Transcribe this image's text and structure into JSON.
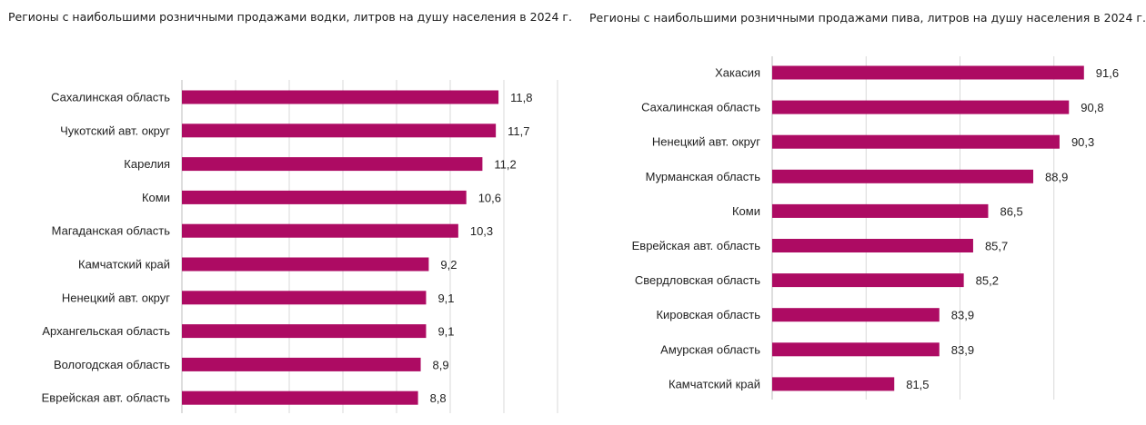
{
  "colors": {
    "bar": "#ad0b63",
    "grid": "#d9d9d9",
    "axis": "#bdbdbd",
    "text": "#222222"
  },
  "chart_data": [
    {
      "type": "bar",
      "orientation": "horizontal",
      "title": "Регионы с наибольшими розничными продажами водки, литров на душу населения в 2024 г.",
      "categories": [
        "Сахалинская область",
        "Чукотский авт. округ",
        "Карелия",
        "Коми",
        "Магаданская область",
        "Камчатский край",
        "Ненецкий авт. округ",
        "Архангельская область",
        "Вологодская область",
        "Еврейская авт. область"
      ],
      "values": [
        11.8,
        11.7,
        11.2,
        10.6,
        10.3,
        9.2,
        9.1,
        9.1,
        8.9,
        8.8
      ],
      "value_labels": [
        "11,8",
        "11,7",
        "11,2",
        "10,6",
        "10,3",
        "9,2",
        "9,1",
        "9,1",
        "8,9",
        "8,8"
      ],
      "xlim": [
        0,
        14
      ],
      "grid": true,
      "legend": "none"
    },
    {
      "type": "bar",
      "orientation": "horizontal",
      "title": "Регионы с наибольшими розничными продажами пива, литров на душу населения в 2024 г.",
      "categories": [
        "Хакасия",
        "Сахалинская область",
        "Ненецкий авт. округ",
        "Мурманская область",
        "Коми",
        "Еврейская авт. область",
        "Свердловская область",
        "Кировская область",
        "Амурская область",
        "Камчатский край"
      ],
      "values": [
        91.6,
        90.8,
        90.3,
        88.9,
        86.5,
        85.7,
        85.2,
        83.9,
        83.9,
        81.5
      ],
      "value_labels": [
        "91,6",
        "90,8",
        "90,3",
        "88,9",
        "86,5",
        "85,7",
        "85,2",
        "83,9",
        "83,9",
        "81,5"
      ],
      "xlim": [
        75,
        95
      ],
      "grid": true,
      "legend": "none"
    }
  ]
}
